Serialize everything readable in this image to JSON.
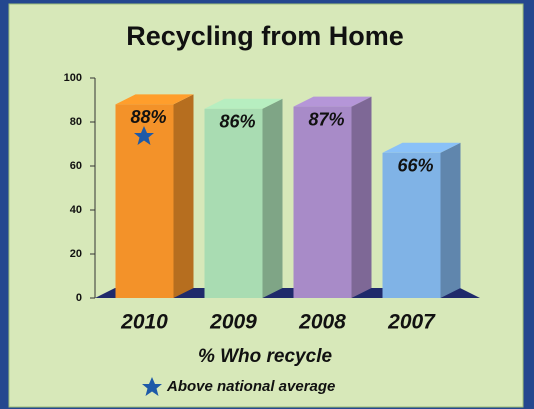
{
  "chart_data": {
    "type": "bar",
    "title": "Recycling from Home",
    "categories": [
      "2010",
      "2009",
      "2008",
      "2007"
    ],
    "values": [
      88,
      86,
      87,
      66
    ],
    "value_labels": [
      "88%",
      "86%",
      "87%",
      "66%"
    ],
    "colors": [
      "#f39229",
      "#a9dcb2",
      "#a88bc8",
      "#80b3e6"
    ],
    "ylim": [
      0,
      100
    ],
    "yticks": [
      0,
      20,
      40,
      60,
      80,
      100
    ],
    "x_label": "% Who recycle",
    "legend_note": "Above national average"
  }
}
